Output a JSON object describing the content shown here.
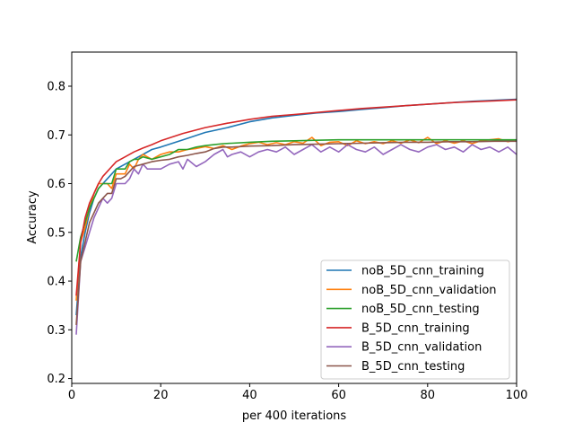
{
  "chart_data": {
    "type": "line",
    "title": "",
    "xlabel": "per 400 iterations",
    "ylabel": "Accuracy",
    "xlim": [
      0,
      100
    ],
    "ylim": [
      0.19,
      0.87
    ],
    "xticks": [
      0,
      20,
      40,
      60,
      80,
      100
    ],
    "yticks": [
      0.2,
      0.3,
      0.4,
      0.5,
      0.6,
      0.7,
      0.8
    ],
    "grid": false,
    "legend_position": "lower-right",
    "series": [
      {
        "name": "noB_5D_cnn_training",
        "color": "#1f77b4",
        "x": [
          1,
          2,
          3,
          4,
          5,
          6,
          7,
          8,
          9,
          10,
          12,
          14,
          16,
          18,
          20,
          25,
          30,
          35,
          40,
          45,
          50,
          55,
          60,
          65,
          70,
          75,
          80,
          85,
          90,
          95,
          100
        ],
        "y": [
          0.33,
          0.45,
          0.5,
          0.54,
          0.57,
          0.59,
          0.6,
          0.61,
          0.62,
          0.63,
          0.64,
          0.65,
          0.66,
          0.67,
          0.675,
          0.69,
          0.705,
          0.715,
          0.727,
          0.735,
          0.74,
          0.745,
          0.748,
          0.752,
          0.756,
          0.76,
          0.763,
          0.766,
          0.769,
          0.771,
          0.773
        ]
      },
      {
        "name": "noB_5D_cnn_validation",
        "color": "#ff7f0e",
        "x": [
          1,
          2,
          3,
          4,
          5,
          6,
          7,
          8,
          9,
          10,
          11,
          12,
          13,
          14,
          15,
          16,
          18,
          20,
          22,
          24,
          26,
          28,
          30,
          32,
          34,
          36,
          38,
          40,
          42,
          44,
          46,
          48,
          50,
          52,
          54,
          56,
          58,
          60,
          62,
          64,
          66,
          68,
          70,
          72,
          74,
          76,
          78,
          80,
          82,
          84,
          86,
          88,
          90,
          92,
          94,
          96,
          98,
          100
        ],
        "y": [
          0.36,
          0.48,
          0.51,
          0.55,
          0.58,
          0.6,
          0.6,
          0.6,
          0.59,
          0.62,
          0.62,
          0.62,
          0.64,
          0.63,
          0.65,
          0.66,
          0.65,
          0.66,
          0.665,
          0.665,
          0.67,
          0.672,
          0.676,
          0.672,
          0.678,
          0.67,
          0.677,
          0.682,
          0.685,
          0.68,
          0.684,
          0.68,
          0.686,
          0.683,
          0.695,
          0.678,
          0.685,
          0.686,
          0.678,
          0.688,
          0.682,
          0.686,
          0.682,
          0.688,
          0.683,
          0.69,
          0.684,
          0.695,
          0.682,
          0.688,
          0.683,
          0.688,
          0.682,
          0.688,
          0.69,
          0.692,
          0.686,
          0.69
        ]
      },
      {
        "name": "noB_5D_cnn_testing",
        "color": "#2ca02c",
        "x": [
          1,
          2,
          3,
          4,
          5,
          6,
          7,
          8,
          9,
          10,
          11,
          12,
          13,
          14,
          15,
          16,
          18,
          20,
          22,
          24,
          26,
          28,
          30,
          32,
          34,
          36,
          40,
          45,
          50,
          55,
          60,
          65,
          70,
          75,
          80,
          85,
          90,
          95,
          100
        ],
        "y": [
          0.44,
          0.49,
          0.52,
          0.55,
          0.57,
          0.59,
          0.6,
          0.6,
          0.6,
          0.63,
          0.63,
          0.63,
          0.645,
          0.65,
          0.65,
          0.655,
          0.65,
          0.655,
          0.66,
          0.67,
          0.67,
          0.675,
          0.678,
          0.68,
          0.682,
          0.683,
          0.685,
          0.687,
          0.688,
          0.689,
          0.69,
          0.69,
          0.69,
          0.69,
          0.69,
          0.69,
          0.69,
          0.69,
          0.69
        ]
      },
      {
        "name": "B_5D_cnn_training",
        "color": "#d62728",
        "x": [
          1,
          2,
          3,
          4,
          5,
          6,
          7,
          8,
          9,
          10,
          12,
          14,
          16,
          18,
          20,
          25,
          30,
          35,
          40,
          45,
          50,
          55,
          60,
          65,
          70,
          75,
          80,
          85,
          90,
          95,
          100
        ],
        "y": [
          0.37,
          0.48,
          0.53,
          0.56,
          0.58,
          0.6,
          0.615,
          0.625,
          0.635,
          0.645,
          0.655,
          0.665,
          0.673,
          0.68,
          0.688,
          0.703,
          0.715,
          0.724,
          0.732,
          0.738,
          0.742,
          0.746,
          0.75,
          0.754,
          0.757,
          0.76,
          0.763,
          0.766,
          0.768,
          0.77,
          0.772
        ]
      },
      {
        "name": "B_5D_cnn_validation",
        "color": "#9467bd",
        "x": [
          1,
          2,
          3,
          4,
          5,
          6,
          7,
          8,
          9,
          10,
          11,
          12,
          13,
          14,
          15,
          16,
          17,
          18,
          20,
          22,
          24,
          25,
          26,
          28,
          30,
          32,
          34,
          35,
          36,
          38,
          40,
          42,
          44,
          46,
          48,
          50,
          52,
          54,
          56,
          58,
          60,
          62,
          64,
          66,
          68,
          70,
          72,
          74,
          76,
          78,
          80,
          82,
          84,
          86,
          88,
          90,
          92,
          94,
          96,
          98,
          100
        ],
        "y": [
          0.29,
          0.44,
          0.47,
          0.5,
          0.53,
          0.55,
          0.57,
          0.56,
          0.57,
          0.6,
          0.6,
          0.6,
          0.61,
          0.63,
          0.62,
          0.64,
          0.63,
          0.63,
          0.63,
          0.64,
          0.645,
          0.63,
          0.65,
          0.635,
          0.645,
          0.66,
          0.67,
          0.655,
          0.66,
          0.665,
          0.655,
          0.665,
          0.67,
          0.665,
          0.675,
          0.66,
          0.67,
          0.68,
          0.665,
          0.675,
          0.665,
          0.68,
          0.67,
          0.665,
          0.675,
          0.66,
          0.67,
          0.68,
          0.67,
          0.665,
          0.675,
          0.68,
          0.67,
          0.675,
          0.665,
          0.68,
          0.67,
          0.675,
          0.665,
          0.675,
          0.66
        ]
      },
      {
        "name": "B_5D_cnn_testing",
        "color": "#8c564b",
        "x": [
          1,
          2,
          3,
          4,
          5,
          6,
          7,
          8,
          9,
          10,
          11,
          12,
          13,
          14,
          16,
          18,
          20,
          22,
          24,
          26,
          28,
          30,
          32,
          34,
          36,
          40,
          45,
          50,
          55,
          60,
          65,
          70,
          75,
          80,
          85,
          90,
          95,
          100
        ],
        "y": [
          0.31,
          0.44,
          0.48,
          0.52,
          0.54,
          0.56,
          0.57,
          0.58,
          0.58,
          0.61,
          0.61,
          0.615,
          0.625,
          0.635,
          0.64,
          0.645,
          0.648,
          0.65,
          0.655,
          0.658,
          0.662,
          0.665,
          0.672,
          0.675,
          0.675,
          0.677,
          0.678,
          0.68,
          0.681,
          0.682,
          0.683,
          0.684,
          0.685,
          0.685,
          0.686,
          0.686,
          0.687,
          0.687
        ]
      }
    ]
  }
}
